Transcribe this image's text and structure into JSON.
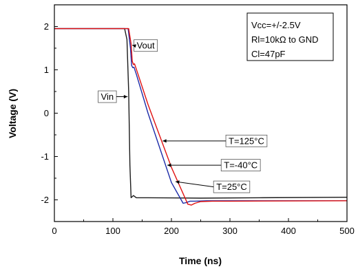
{
  "chart_data": {
    "type": "line",
    "title": "",
    "xlabel": "Time (ns)",
    "ylabel": "Voltage (V)",
    "xlim": [
      0,
      500
    ],
    "ylim": [
      -2.5,
      2.5
    ],
    "x_ticks": [
      0,
      100,
      200,
      300,
      400,
      500
    ],
    "y_ticks": [
      -2,
      -1,
      0,
      1,
      2
    ],
    "grid": false,
    "legend": "none",
    "conditions": [
      "Vcc=+/-2.5V",
      "Rl=10kΩ to GND",
      "Cl=47pF"
    ],
    "series": [
      {
        "color": "#1a1a1a",
        "x": [
          0,
          120,
          124,
          127,
          129,
          131,
          135,
          140,
          145,
          160,
          250,
          350,
          500
        ],
        "y": [
          1.95,
          1.95,
          1.7,
          0.5,
          -1.2,
          -1.95,
          -1.9,
          -1.95,
          -1.95,
          -1.95,
          -1.96,
          -1.95,
          -1.94
        ]
      },
      {
        "color": "#1b2aa8",
        "x": [
          0,
          126,
          130,
          132,
          134,
          136,
          140,
          160,
          200,
          220,
          226,
          232,
          240,
          260,
          300,
          500
        ],
        "y": [
          1.95,
          1.95,
          1.5,
          1.1,
          1.05,
          1.06,
          0.9,
          0.0,
          -1.6,
          -2.08,
          -2.06,
          -2.03,
          -2.03,
          -2.02,
          -2.02,
          -2.02
        ]
      },
      {
        "color": "#e01010",
        "x": [
          0,
          127,
          131,
          133,
          135,
          137,
          141,
          160,
          200,
          228,
          234,
          240,
          250,
          270,
          300,
          500
        ],
        "y": [
          1.95,
          1.95,
          1.6,
          1.2,
          1.12,
          1.14,
          0.98,
          0.2,
          -1.25,
          -2.1,
          -2.12,
          -2.08,
          -2.04,
          -2.03,
          -2.03,
          -2.02
        ]
      }
    ],
    "annotations": [
      {
        "text": "Vout",
        "point": [
          133,
          1.57
        ],
        "box_anchor": [
          136,
          1.56
        ]
      },
      {
        "text": "Vin",
        "point": [
          125,
          0.38
        ],
        "box_anchor": [
          106,
          0.38
        ]
      },
      {
        "text": "T=125°C",
        "point": [
          185,
          -0.64
        ],
        "box_anchor": [
          293,
          -0.64
        ]
      },
      {
        "text": "T=-40°C",
        "point": [
          193,
          -1.2
        ],
        "box_anchor": [
          285,
          -1.2
        ]
      },
      {
        "text": "T=25°C",
        "point": [
          207,
          -1.58
        ],
        "box_anchor": [
          272,
          -1.7
        ]
      }
    ]
  }
}
